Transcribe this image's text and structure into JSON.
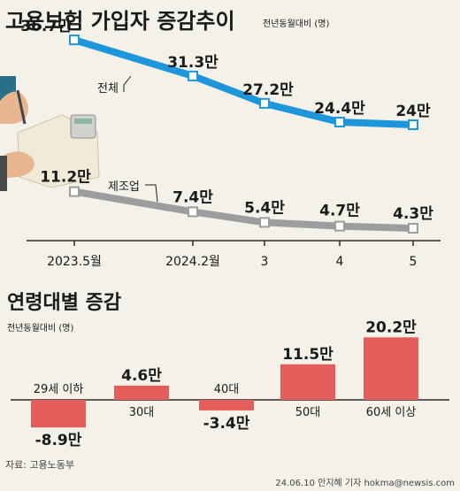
{
  "chart_data": [
    {
      "type": "line",
      "title": "고용보험 가입자 증감추이",
      "unit_note": "전년동월대비 (명)",
      "x": [
        "2023.5월",
        "2024.2월",
        "3",
        "4",
        "5"
      ],
      "series": [
        {
          "name": "전체",
          "values": [
            36.7,
            31.3,
            27.2,
            24.4,
            24
          ],
          "labels": [
            "36.7만",
            "31.3만",
            "27.2만",
            "24.4만",
            "24만"
          ],
          "color": "#1e96dc"
        },
        {
          "name": "제조업",
          "values": [
            11.2,
            7.4,
            5.4,
            4.7,
            4.3
          ],
          "labels": [
            "11.2만",
            "7.4만",
            "5.4만",
            "4.7만",
            "4.3만"
          ],
          "color": "#9d9d9d"
        }
      ]
    },
    {
      "type": "bar",
      "title": "연령대별 증감",
      "unit_note": "전년동월대비 (명)",
      "categories": [
        "29세 이하",
        "30대",
        "40대",
        "50대",
        "60세 이상"
      ],
      "values": [
        -8.9,
        4.6,
        -3.4,
        11.5,
        20.2
      ],
      "labels": [
        "-8.9만",
        "4.6만",
        "-3.4만",
        "11.5만",
        "20.2만"
      ],
      "color": "#e35d5b"
    }
  ],
  "footer": {
    "source": "자료: 고용노동부",
    "credit": "24.06.10 안지혜 기자 hokma@newsis.com"
  },
  "colors": {
    "background": "#f4f1e9",
    "baseline": "#2b2b2b"
  }
}
